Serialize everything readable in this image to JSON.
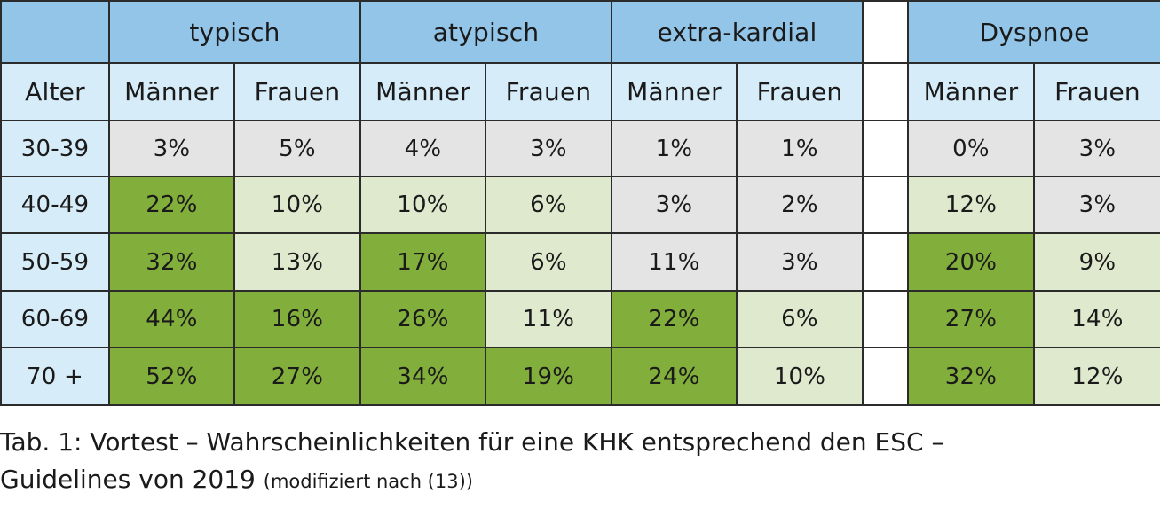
{
  "colors": {
    "header": "#92c5e8",
    "subheader": "#d7ecf9",
    "gray": "#e4e4e4",
    "light_green": "#dfe9cd",
    "dark_green": "#82ae3c",
    "blank": "#ffffff"
  },
  "groups": [
    "typisch",
    "atypisch",
    "extra-kardial",
    "Dyspnoe"
  ],
  "age_header": "Alter",
  "sub_headers": [
    "Männer",
    "Frauen",
    "Männer",
    "Frauen",
    "Männer",
    "Frauen",
    "Männer",
    "Frauen"
  ],
  "rows": [
    {
      "age": "30-39",
      "values": [
        "3%",
        "5%",
        "4%",
        "3%",
        "1%",
        "1%",
        "0%",
        "3%"
      ],
      "shade": [
        "gray",
        "gray",
        "gray",
        "gray",
        "gray",
        "gray",
        "gray",
        "gray"
      ]
    },
    {
      "age": "40-49",
      "values": [
        "22%",
        "10%",
        "10%",
        "6%",
        "3%",
        "2%",
        "12%",
        "3%"
      ],
      "shade": [
        "dark_green",
        "light_green",
        "light_green",
        "light_green",
        "gray",
        "gray",
        "light_green",
        "gray"
      ]
    },
    {
      "age": "50-59",
      "values": [
        "32%",
        "13%",
        "17%",
        "6%",
        "11%",
        "3%",
        "20%",
        "9%"
      ],
      "shade": [
        "dark_green",
        "light_green",
        "dark_green",
        "light_green",
        "gray",
        "gray",
        "dark_green",
        "light_green"
      ]
    },
    {
      "age": "60-69",
      "values": [
        "44%",
        "16%",
        "26%",
        "11%",
        "22%",
        "6%",
        "27%",
        "14%"
      ],
      "shade": [
        "dark_green",
        "dark_green",
        "dark_green",
        "light_green",
        "dark_green",
        "light_green",
        "dark_green",
        "light_green"
      ]
    },
    {
      "age": "70 +",
      "values": [
        "52%",
        "27%",
        "34%",
        "19%",
        "24%",
        "10%",
        "32%",
        "12%"
      ],
      "shade": [
        "dark_green",
        "dark_green",
        "dark_green",
        "dark_green",
        "dark_green",
        "light_green",
        "dark_green",
        "light_green"
      ]
    }
  ],
  "caption": {
    "line1": "Tab. 1: Vortest – Wahrscheinlichkeiten für eine KHK entsprechend den ESC –",
    "line2": "Guidelines von 2019",
    "line2_small": "(modifiziert nach (13))"
  }
}
